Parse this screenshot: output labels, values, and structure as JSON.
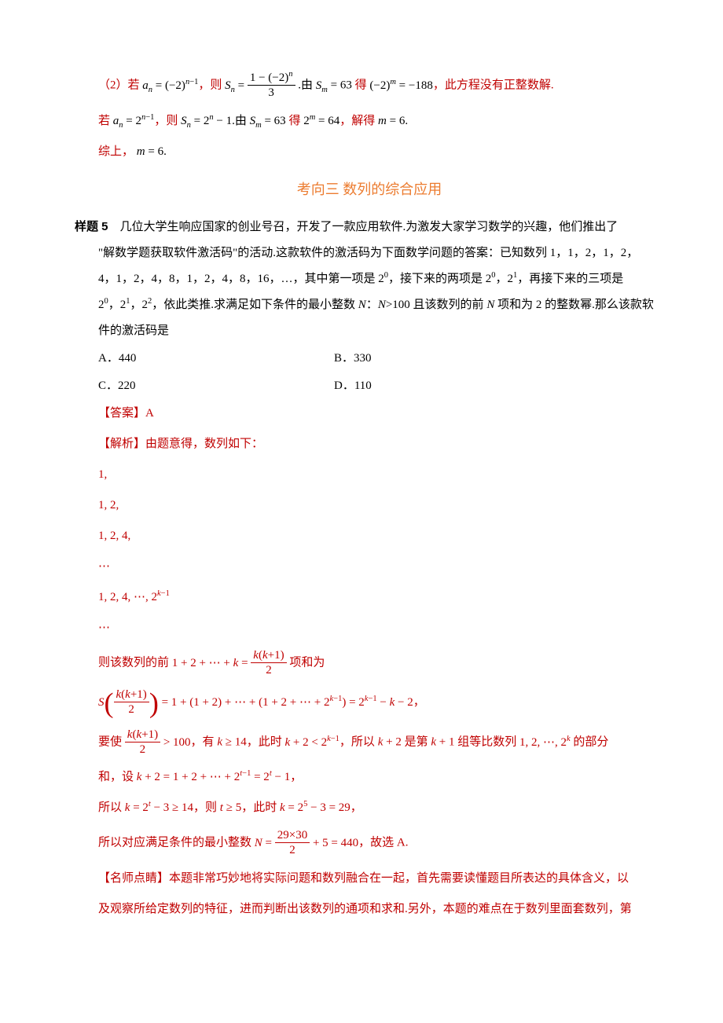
{
  "top": {
    "case1_prefix": "（2）若",
    "case1_expr1": "aₙ = (−2)ⁿ⁻¹",
    "case1_then": "，则",
    "case1_sn_lhs": "Sₙ =",
    "case1_sn_num": "1 − (−2)ⁿ",
    "case1_sn_den": "3",
    "case1_by": ".由",
    "case1_sm": "Sₘ = 63",
    "case1_get": "得",
    "case1_res": "(−2)ᵐ = −188",
    "case1_tail": "，此方程没有正整数解.",
    "case2_prefix": "若",
    "case2_expr1": "aₙ = 2ⁿ⁻¹",
    "case2_then": "，则",
    "case2_sn": "Sₙ = 2ⁿ − 1",
    "case2_by": ".由",
    "case2_sm": "Sₘ = 63",
    "case2_get": "得",
    "case2_res": "2ᵐ = 64",
    "case2_solve": "，解得",
    "case2_m": "m = 6",
    "case2_period": ".",
    "summary": "综上，",
    "summary_m": "m = 6",
    "summary_period": "."
  },
  "heading": "考向三  数列的综合应用",
  "problem": {
    "label": "样题 5",
    "p1": "几位大学生响应国家的创业号召，开发了一款应用软件.为激发大家学习数学的兴趣，他们推出了",
    "p2": "\"解数学题获取软件激活码\"的活动.这款软件的激活码为下面数学问题的答案：已知数列 1，1，2，1，2，",
    "p3_a": "4，1，2，4，8，1，2，4，8，16，…，其中第一项是 2",
    "p3_sup0a": "0",
    "p3_b": "，接下来的两项是 2",
    "p3_sup0b": "0",
    "p3_c": "，2",
    "p3_sup1a": "1",
    "p3_d": "，再接下来的三项是",
    "p4_a": "2",
    "p4_sup0": "0",
    "p4_b": "，2",
    "p4_sup1": "1",
    "p4_c": "，2",
    "p4_sup2": "2",
    "p4_d": "，依此类推.求满足如下条件的最小整数",
    "p4_N": " N",
    "p4_e": "：",
    "p4_N2": "N",
    "p4_f": ">100 且该数列的前",
    "p4_N3": " N ",
    "p4_g": "项和为 2 的整数幂.那么该款软",
    "p5": "件的激活码是"
  },
  "options": {
    "a": "A．440",
    "b": "B．330",
    "c": "C．220",
    "d": "D．110"
  },
  "answer_label": "【答案】",
  "answer_val": "A",
  "analysis_label": "【解析】",
  "analysis_intro": "由题意得，数列如下：",
  "rows": {
    "r1": "1,",
    "r2": "1, 2,",
    "r3": "1, 2, 4,",
    "r4": "⋯",
    "r5": "1, 2, 4, ⋯, 2ᵏ⁻¹",
    "r6": "⋯"
  },
  "line_pre": {
    "a": "则该数列的前",
    "sum": "1 + 2 + ⋯ + k = ",
    "frac_num": "k(k+1)",
    "frac_den": "2",
    "b": "项和为"
  },
  "line_S": {
    "S": "S",
    "paren_num": "k(k+1)",
    "paren_den": "2",
    "eq": " = 1 + (1 + 2) + ⋯ + (1 + 2 + ⋯ + 2ᵏ⁻¹) = 2ᵏ⁻¹ − k − 2",
    "tail": "，"
  },
  "line_req": {
    "a": "要使",
    "frac_num": "k(k+1)",
    "frac_den": "2",
    "b": " > 100",
    "c": "，有",
    "d": "k ≥ 14",
    "e": "，此时",
    "f": "k + 2 < 2ᵏ⁻¹",
    "g": "，所以",
    "h": "k + 2",
    "i": "是第",
    "j": "k + 1",
    "k": "组等比数列",
    "l": "1, 2, ⋯, 2ᵏ",
    "m": "的部分"
  },
  "line_req2": {
    "a": "和，设",
    "b": "k + 2 = 1 + 2 + ⋯ + 2ᵗ⁻¹ = 2ᵗ − 1",
    "c": "，"
  },
  "line_so1": {
    "a": "所以",
    "b": "k = 2ᵗ − 3 ≥ 14",
    "c": "，则",
    "d": "t ≥ 5",
    "e": "，此时",
    "f": "k = 2⁵ − 3 = 29",
    "g": "，"
  },
  "line_so2": {
    "a": "所以对应满足条件的最小整数",
    "N": "N = ",
    "frac_num": "29×30",
    "frac_den": "2",
    "b": " + 5 = 440",
    "c": "，故选 A."
  },
  "comment": {
    "label": "【名师点睛】",
    "p1": "本题非常巧妙地将实际问题和数列融合在一起，首先需要读懂题目所表达的具体含义，以",
    "p2": "及观察所给定数列的特征，进而判断出该数列的通项和求和.另外，本题的难点在于数列里面套数列，第"
  }
}
